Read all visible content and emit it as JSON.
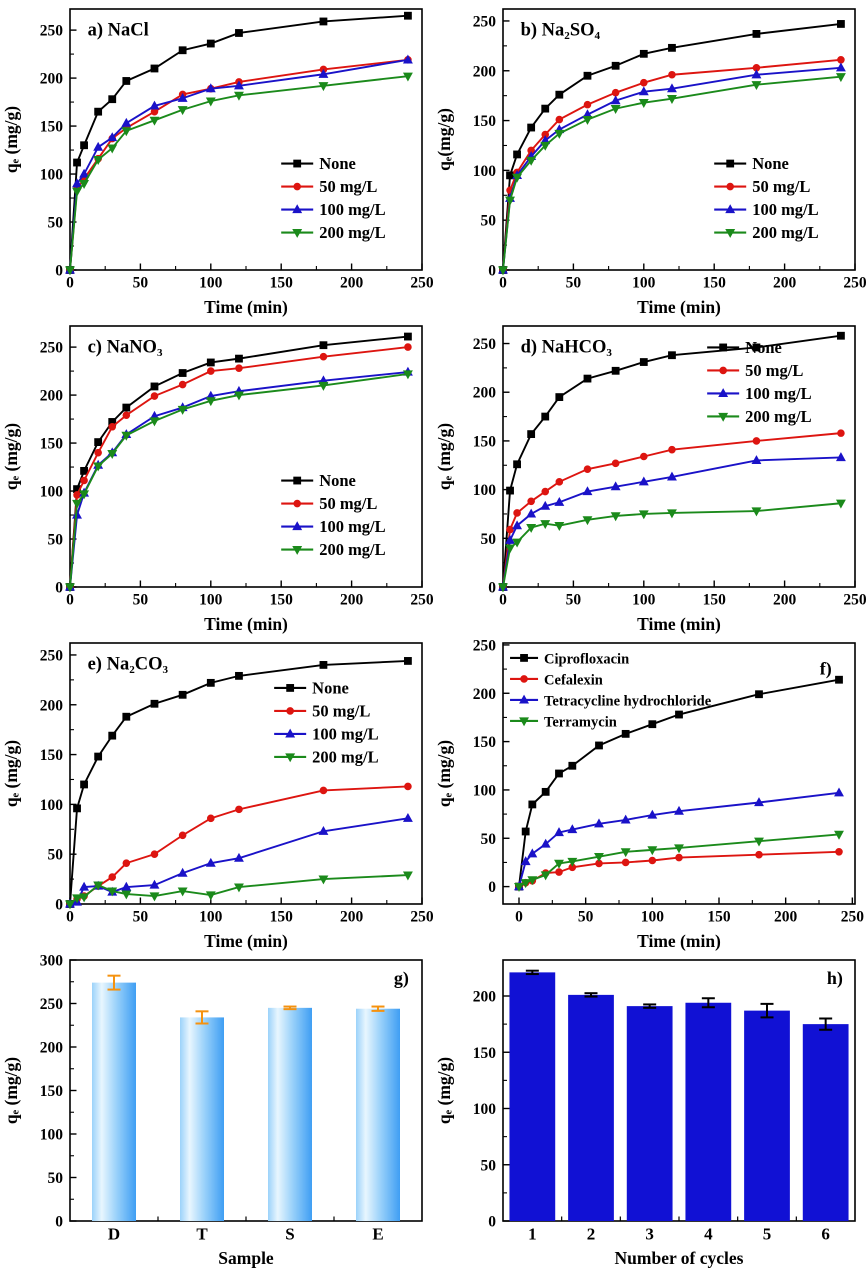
{
  "figure": {
    "background": "#ffffff"
  },
  "colors": {
    "black": "#000000",
    "red": "#dd1510",
    "blue": "#1a12c8",
    "green": "#1b8a1b",
    "bar_light_blue_edge": "#3f9ef3",
    "bar_light_blue_mid": "#e8f6fe",
    "bar_light_blue_body": "#9bd2fa",
    "bar_dark_blue": "#1111d4",
    "error_orange": "#f5920f",
    "error_black": "#000000"
  },
  "chart_data": [
    {
      "id": "a",
      "type": "line",
      "title": "a) NaCl",
      "title_fx": 0.05,
      "title_fy": 0.04,
      "xlabel": "Time (min)",
      "ylabel": "qₑ (mg/g)",
      "xlim": [
        0,
        250
      ],
      "ylim": [
        0,
        272
      ],
      "xticks": [
        0,
        50,
        100,
        150,
        200,
        250
      ],
      "yticks": [
        0,
        50,
        100,
        150,
        200,
        250
      ],
      "x": [
        0,
        5,
        10,
        20,
        30,
        40,
        60,
        80,
        100,
        120,
        180,
        240
      ],
      "legend": {
        "fx": 0.6,
        "fy": 0.55
      },
      "series": [
        {
          "name": "None",
          "color": "#000000",
          "marker": "square",
          "values": [
            0,
            112,
            130,
            165,
            178,
            197,
            210,
            229,
            236,
            247,
            259,
            265
          ]
        },
        {
          "name": "50 mg/L",
          "color": "#dd1510",
          "marker": "circle",
          "values": [
            0,
            85,
            95,
            116,
            137,
            148,
            165,
            183,
            189,
            196,
            209,
            219
          ]
        },
        {
          "name": "100 mg/L",
          "color": "#1a12c8",
          "marker": "triup",
          "values": [
            0,
            90,
            100,
            128,
            138,
            153,
            171,
            179,
            189,
            192,
            204,
            219
          ]
        },
        {
          "name": "200 mg/L",
          "color": "#1b8a1b",
          "marker": "tridown",
          "values": [
            0,
            82,
            90,
            115,
            127,
            145,
            156,
            167,
            176,
            182,
            192,
            202
          ]
        }
      ]
    },
    {
      "id": "b",
      "type": "line",
      "title": "b) Na₂SO₄",
      "title_fx": 0.05,
      "title_fy": 0.04,
      "xlabel": "Time (min)",
      "ylabel": "qₑ(mg/g)",
      "xlim": [
        0,
        250
      ],
      "ylim": [
        0,
        262
      ],
      "xticks": [
        0,
        50,
        100,
        150,
        200,
        250
      ],
      "yticks": [
        0,
        50,
        100,
        150,
        200,
        250
      ],
      "x": [
        0,
        5,
        10,
        20,
        30,
        40,
        60,
        80,
        100,
        120,
        180,
        240
      ],
      "legend": {
        "fx": 0.6,
        "fy": 0.55
      },
      "series": [
        {
          "name": "None",
          "color": "#000000",
          "marker": "square",
          "values": [
            0,
            95,
            116,
            143,
            162,
            176,
            195,
            205,
            217,
            223,
            237,
            247
          ]
        },
        {
          "name": "50 mg/L",
          "color": "#dd1510",
          "marker": "circle",
          "values": [
            0,
            80,
            98,
            120,
            136,
            151,
            166,
            178,
            188,
            196,
            203,
            211
          ]
        },
        {
          "name": "100 mg/L",
          "color": "#1a12c8",
          "marker": "triup",
          "values": [
            0,
            72,
            95,
            114,
            130,
            141,
            156,
            170,
            179,
            182,
            196,
            203
          ]
        },
        {
          "name": "200 mg/L",
          "color": "#1b8a1b",
          "marker": "tridown",
          "values": [
            0,
            70,
            93,
            110,
            125,
            137,
            151,
            162,
            168,
            172,
            186,
            194
          ]
        }
      ]
    },
    {
      "id": "c",
      "type": "line",
      "title": "c) NaNO₃",
      "title_fx": 0.05,
      "title_fy": 0.04,
      "xlabel": "Time (min)",
      "ylabel": "qₑ (mg/g)",
      "xlim": [
        0,
        250
      ],
      "ylim": [
        0,
        272
      ],
      "xticks": [
        0,
        50,
        100,
        150,
        200,
        250
      ],
      "yticks": [
        0,
        50,
        100,
        150,
        200,
        250
      ],
      "x": [
        0,
        5,
        10,
        20,
        30,
        40,
        60,
        80,
        100,
        120,
        180,
        240
      ],
      "legend": {
        "fx": 0.6,
        "fy": 0.55
      },
      "series": [
        {
          "name": "None",
          "color": "#000000",
          "marker": "square",
          "values": [
            0,
            102,
            121,
            151,
            172,
            187,
            209,
            223,
            234,
            238,
            252,
            261
          ]
        },
        {
          "name": "50 mg/L",
          "color": "#dd1510",
          "marker": "circle",
          "values": [
            0,
            96,
            111,
            140,
            167,
            179,
            199,
            211,
            225,
            228,
            240,
            250
          ]
        },
        {
          "name": "100 mg/L",
          "color": "#1a12c8",
          "marker": "triup",
          "values": [
            0,
            75,
            98,
            127,
            140,
            159,
            178,
            187,
            199,
            204,
            215,
            224
          ]
        },
        {
          "name": "200 mg/L",
          "color": "#1b8a1b",
          "marker": "tridown",
          "values": [
            0,
            87,
            97,
            126,
            139,
            158,
            173,
            185,
            194,
            200,
            210,
            222
          ]
        }
      ]
    },
    {
      "id": "d",
      "type": "line",
      "title": "d) NaHCO₃",
      "title_fx": 0.05,
      "title_fy": 0.04,
      "xlabel": "Time (min)",
      "ylabel": "qₑ (mg/g)",
      "xlim": [
        0,
        250
      ],
      "ylim": [
        0,
        268
      ],
      "xticks": [
        0,
        50,
        100,
        150,
        200,
        250
      ],
      "yticks": [
        0,
        50,
        100,
        150,
        200,
        250
      ],
      "x": [
        0,
        5,
        10,
        20,
        30,
        40,
        60,
        80,
        100,
        120,
        180,
        240
      ],
      "legend": {
        "fx": 0.58,
        "fy": 0.04
      },
      "series": [
        {
          "name": "None",
          "color": "#000000",
          "marker": "square",
          "values": [
            0,
            99,
            126,
            157,
            175,
            195,
            214,
            222,
            231,
            238,
            246,
            258
          ]
        },
        {
          "name": "50 mg/L",
          "color": "#dd1510",
          "marker": "circle",
          "values": [
            0,
            59,
            76,
            88,
            98,
            108,
            121,
            127,
            134,
            141,
            150,
            158
          ]
        },
        {
          "name": "100 mg/L",
          "color": "#1a12c8",
          "marker": "triup",
          "values": [
            0,
            48,
            63,
            75,
            83,
            87,
            98,
            103,
            108,
            113,
            130,
            133
          ]
        },
        {
          "name": "200 mg/L",
          "color": "#1b8a1b",
          "marker": "tridown",
          "values": [
            0,
            40,
            46,
            61,
            65,
            63,
            69,
            73,
            75,
            76,
            78,
            86
          ]
        }
      ]
    },
    {
      "id": "e",
      "type": "line",
      "title": "e) Na₂CO₃",
      "title_fx": 0.05,
      "title_fy": 0.04,
      "xlabel": "Time (min)",
      "ylabel": "qₑ (mg/g)",
      "xlim": [
        0,
        250
      ],
      "ylim": [
        0,
        262
      ],
      "xticks": [
        0,
        50,
        100,
        150,
        200,
        250
      ],
      "yticks": [
        0,
        50,
        100,
        150,
        200,
        250
      ],
      "x": [
        0,
        5,
        10,
        20,
        30,
        40,
        60,
        80,
        100,
        120,
        180,
        240
      ],
      "legend": {
        "fx": 0.58,
        "fy": 0.13
      },
      "series": [
        {
          "name": "None",
          "color": "#000000",
          "marker": "square",
          "values": [
            0,
            96,
            120,
            148,
            169,
            188,
            201,
            210,
            222,
            229,
            240,
            244
          ]
        },
        {
          "name": "50 mg/L",
          "color": "#dd1510",
          "marker": "circle",
          "values": [
            0,
            5,
            8,
            18,
            27,
            41,
            50,
            69,
            86,
            95,
            114,
            118
          ]
        },
        {
          "name": "100 mg/L",
          "color": "#1a12c8",
          "marker": "triup",
          "values": [
            0,
            2,
            17,
            18,
            12,
            17,
            19,
            31,
            41,
            46,
            73,
            86
          ]
        },
        {
          "name": "200 mg/L",
          "color": "#1b8a1b",
          "marker": "tridown",
          "values": [
            0,
            6,
            7,
            19,
            13,
            10,
            8,
            13,
            9,
            17,
            25,
            29
          ]
        }
      ]
    },
    {
      "id": "f",
      "type": "line",
      "title": "",
      "panel_label": "f)",
      "panel_fx": 0.9,
      "panel_fy": 0.06,
      "xlabel": "Time (min)",
      "ylabel": "qₑ (mg/g)",
      "xlim": [
        -12,
        252
      ],
      "ylim": [
        -18,
        252
      ],
      "xticks": [
        0,
        50,
        100,
        150,
        200,
        250
      ],
      "yticks": [
        0,
        50,
        100,
        150,
        200,
        250
      ],
      "x": [
        0,
        5,
        10,
        20,
        30,
        40,
        60,
        80,
        100,
        120,
        180,
        240
      ],
      "legend": {
        "fx": 0.02,
        "fy": 0.015,
        "small": true
      },
      "series": [
        {
          "name": "Ciprofloxacin",
          "color": "#000000",
          "marker": "square",
          "values": [
            0,
            57,
            85,
            98,
            117,
            125,
            146,
            158,
            168,
            178,
            199,
            214
          ]
        },
        {
          "name": "Cefalexin",
          "color": "#dd1510",
          "marker": "circle",
          "values": [
            0,
            4,
            6,
            14,
            15,
            20,
            24,
            25,
            27,
            30,
            33,
            36
          ]
        },
        {
          "name": "Tetracycline hydrochloride",
          "color": "#1a12c8",
          "marker": "triup",
          "values": [
            0,
            26,
            34,
            44,
            56,
            59,
            65,
            69,
            74,
            78,
            87,
            97
          ]
        },
        {
          "name": "Terramycin",
          "color": "#1b8a1b",
          "marker": "tridown",
          "values": [
            0,
            4,
            7,
            12,
            24,
            26,
            31,
            36,
            38,
            40,
            47,
            54
          ]
        }
      ]
    },
    {
      "id": "g",
      "type": "bar",
      "panel_label": "g)",
      "panel_fx": 0.92,
      "panel_fy": 0.03,
      "xlabel": "Sample",
      "ylabel": "qₑ (mg/g)",
      "categories": [
        "D",
        "T",
        "S",
        "E"
      ],
      "values": [
        274,
        234,
        245,
        244
      ],
      "errors": [
        8,
        7,
        1.5,
        2.5
      ],
      "ylim": [
        0,
        300
      ],
      "yticks": [
        0,
        50,
        100,
        150,
        200,
        250,
        300
      ],
      "bar_frac": 0.5,
      "bar_fill": "gradient-lightblue",
      "error_color": "#f5920f"
    },
    {
      "id": "h",
      "type": "bar",
      "panel_label": "h)",
      "panel_fx": 0.92,
      "panel_fy": 0.03,
      "xlabel": "Number of cycles",
      "ylabel": "qₑ (mg/g)",
      "categories": [
        "1",
        "2",
        "3",
        "4",
        "5",
        "6"
      ],
      "values": [
        221,
        201,
        191,
        194,
        187,
        175
      ],
      "errors": [
        1.5,
        1.5,
        1.5,
        4,
        6,
        5
      ],
      "ylim": [
        0,
        232
      ],
      "yticks": [
        0,
        50,
        100,
        150,
        200
      ],
      "bar_frac": 0.78,
      "bar_fill": "#1111d4",
      "error_color": "#000000"
    }
  ]
}
